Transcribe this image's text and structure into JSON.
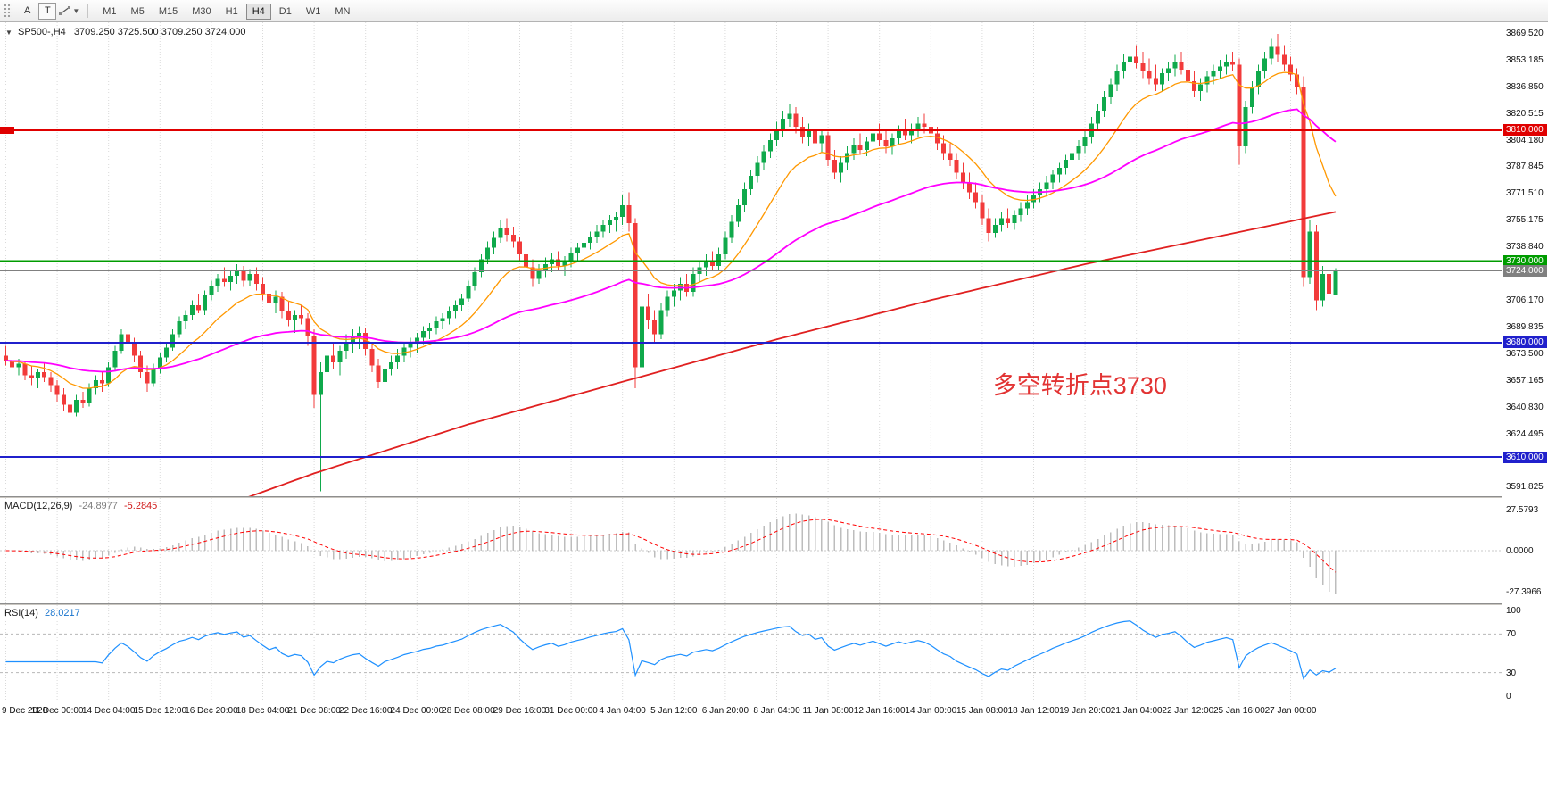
{
  "toolbar": {
    "tools": [
      {
        "name": "annotation-tool",
        "label": "A"
      },
      {
        "name": "text-tool",
        "label": "T"
      }
    ],
    "timeframes": [
      "M1",
      "M5",
      "M15",
      "M30",
      "H1",
      "H4",
      "D1",
      "W1",
      "MN"
    ],
    "active_timeframe": "H4"
  },
  "chart_header": {
    "symbol": "SP500-,H4",
    "ohlc": "3709.250 3725.500 3709.250 3724.000"
  },
  "colors": {
    "up_candle": "#0fa94b",
    "down_candle": "#f23b3b",
    "grid": "#dadada",
    "macd_histogram": "#bdbdbd",
    "macd_signal": "#ff0000",
    "rsi_line": "#1e90ff",
    "annotation": "#e23333"
  },
  "chart_data": {
    "type": "candlestick",
    "symbol": "SP500-",
    "timeframe": "H4",
    "x_axis": {
      "bars_per_label": 8,
      "labels": [
        "9 Dec 2020",
        "11 Dec 00:00",
        "14 Dec 04:00",
        "15 Dec 12:00",
        "16 Dec 20:00",
        "18 Dec 04:00",
        "21 Dec 08:00",
        "22 Dec 16:00",
        "24 Dec 00:00",
        "28 Dec 08:00",
        "29 Dec 16:00",
        "31 Dec 00:00",
        "4 Jan 04:00",
        "5 Jan 12:00",
        "6 Jan 20:00",
        "8 Jan 04:00",
        "11 Jan 08:00",
        "12 Jan 16:00",
        "14 Jan 00:00",
        "15 Jan 08:00",
        "18 Jan 12:00",
        "19 Jan 20:00",
        "21 Jan 04:00",
        "22 Jan 12:00",
        "25 Jan 16:00",
        "27 Jan 00:00"
      ]
    },
    "y_axis": {
      "min": 3586,
      "max": 3876,
      "ticks": [
        "3869.520",
        "3853.185",
        "3836.850",
        "3820.515",
        "3804.180",
        "3787.845",
        "3771.510",
        "3755.175",
        "3738.840",
        "3722.505",
        "3706.170",
        "3689.835",
        "3673.500",
        "3657.165",
        "3640.830",
        "3624.495",
        "3608.160",
        "3591.825"
      ]
    },
    "candles": [
      [
        3672,
        3678,
        3666,
        3669
      ],
      [
        3669,
        3673,
        3662,
        3665
      ],
      [
        3665,
        3670,
        3660,
        3667
      ],
      [
        3667,
        3669,
        3657,
        3660
      ],
      [
        3660,
        3666,
        3654,
        3658
      ],
      [
        3658,
        3664,
        3652,
        3662
      ],
      [
        3662,
        3667,
        3656,
        3659
      ],
      [
        3659,
        3662,
        3650,
        3654
      ],
      [
        3654,
        3657,
        3644,
        3648
      ],
      [
        3648,
        3652,
        3638,
        3642
      ],
      [
        3642,
        3646,
        3633,
        3637
      ],
      [
        3637,
        3648,
        3635,
        3645
      ],
      [
        3645,
        3650,
        3640,
        3643
      ],
      [
        3643,
        3655,
        3641,
        3652
      ],
      [
        3652,
        3660,
        3648,
        3657
      ],
      [
        3657,
        3662,
        3650,
        3655
      ],
      [
        3655,
        3668,
        3653,
        3665
      ],
      [
        3665,
        3678,
        3663,
        3675
      ],
      [
        3675,
        3688,
        3673,
        3685
      ],
      [
        3685,
        3690,
        3676,
        3680
      ],
      [
        3680,
        3683,
        3668,
        3672
      ],
      [
        3672,
        3675,
        3658,
        3662
      ],
      [
        3662,
        3666,
        3650,
        3655
      ],
      [
        3655,
        3667,
        3653,
        3664
      ],
      [
        3664,
        3674,
        3661,
        3671
      ],
      [
        3671,
        3680,
        3668,
        3677
      ],
      [
        3677,
        3688,
        3675,
        3685
      ],
      [
        3685,
        3696,
        3683,
        3693
      ],
      [
        3693,
        3700,
        3688,
        3697
      ],
      [
        3697,
        3706,
        3694,
        3703
      ],
      [
        3703,
        3710,
        3698,
        3700
      ],
      [
        3700,
        3712,
        3697,
        3709
      ],
      [
        3709,
        3718,
        3706,
        3715
      ],
      [
        3715,
        3722,
        3711,
        3719
      ],
      [
        3719,
        3726,
        3714,
        3717
      ],
      [
        3717,
        3724,
        3712,
        3721
      ],
      [
        3721,
        3728,
        3716,
        3724
      ],
      [
        3724,
        3727,
        3714,
        3718
      ],
      [
        3718,
        3725,
        3715,
        3722
      ],
      [
        3722,
        3726,
        3712,
        3716
      ],
      [
        3716,
        3720,
        3706,
        3710
      ],
      [
        3710,
        3715,
        3700,
        3704
      ],
      [
        3704,
        3712,
        3698,
        3708
      ],
      [
        3708,
        3711,
        3695,
        3699
      ],
      [
        3699,
        3705,
        3690,
        3694
      ],
      [
        3694,
        3700,
        3686,
        3697
      ],
      [
        3697,
        3703,
        3691,
        3695
      ],
      [
        3695,
        3698,
        3678,
        3684
      ],
      [
        3684,
        3688,
        3640,
        3648
      ],
      [
        3648,
        3668,
        3589,
        3662
      ],
      [
        3662,
        3676,
        3656,
        3672
      ],
      [
        3672,
        3680,
        3664,
        3668
      ],
      [
        3668,
        3678,
        3660,
        3675
      ],
      [
        3675,
        3685,
        3670,
        3680
      ],
      [
        3680,
        3688,
        3674,
        3684
      ],
      [
        3684,
        3690,
        3676,
        3686
      ],
      [
        3686,
        3689,
        3672,
        3676
      ],
      [
        3676,
        3680,
        3662,
        3666
      ],
      [
        3666,
        3670,
        3652,
        3656
      ],
      [
        3656,
        3668,
        3653,
        3664
      ],
      [
        3664,
        3672,
        3660,
        3668
      ],
      [
        3668,
        3676,
        3664,
        3672
      ],
      [
        3672,
        3680,
        3668,
        3677
      ],
      [
        3677,
        3683,
        3671,
        3680
      ],
      [
        3680,
        3686,
        3674,
        3683
      ],
      [
        3683,
        3690,
        3679,
        3687
      ],
      [
        3687,
        3692,
        3682,
        3689
      ],
      [
        3689,
        3696,
        3685,
        3693
      ],
      [
        3693,
        3698,
        3688,
        3695
      ],
      [
        3695,
        3702,
        3691,
        3699
      ],
      [
        3699,
        3706,
        3695,
        3703
      ],
      [
        3703,
        3710,
        3699,
        3707
      ],
      [
        3707,
        3718,
        3705,
        3715
      ],
      [
        3715,
        3726,
        3712,
        3723
      ],
      [
        3723,
        3734,
        3720,
        3731
      ],
      [
        3731,
        3742,
        3728,
        3738
      ],
      [
        3738,
        3748,
        3734,
        3744
      ],
      [
        3744,
        3755,
        3741,
        3750
      ],
      [
        3750,
        3756,
        3742,
        3746
      ],
      [
        3746,
        3751,
        3738,
        3742
      ],
      [
        3742,
        3745,
        3730,
        3734
      ],
      [
        3734,
        3738,
        3722,
        3726
      ],
      [
        3726,
        3731,
        3714,
        3719
      ],
      [
        3719,
        3728,
        3716,
        3724
      ],
      [
        3724,
        3732,
        3720,
        3728
      ],
      [
        3728,
        3735,
        3723,
        3731
      ],
      [
        3731,
        3736,
        3724,
        3727
      ],
      [
        3727,
        3733,
        3721,
        3730
      ],
      [
        3730,
        3738,
        3726,
        3735
      ],
      [
        3735,
        3741,
        3730,
        3738
      ],
      [
        3738,
        3744,
        3733,
        3741
      ],
      [
        3741,
        3748,
        3737,
        3745
      ],
      [
        3745,
        3752,
        3741,
        3748
      ],
      [
        3748,
        3755,
        3744,
        3752
      ],
      [
        3752,
        3758,
        3747,
        3755
      ],
      [
        3755,
        3760,
        3748,
        3757
      ],
      [
        3757,
        3770,
        3752,
        3764
      ],
      [
        3764,
        3772,
        3748,
        3753
      ],
      [
        3753,
        3756,
        3652,
        3665
      ],
      [
        3665,
        3708,
        3658,
        3702
      ],
      [
        3702,
        3710,
        3688,
        3694
      ],
      [
        3694,
        3700,
        3680,
        3685
      ],
      [
        3685,
        3704,
        3682,
        3700
      ],
      [
        3700,
        3712,
        3696,
        3708
      ],
      [
        3708,
        3716,
        3702,
        3712
      ],
      [
        3712,
        3720,
        3706,
        3716
      ],
      [
        3716,
        3722,
        3708,
        3711
      ],
      [
        3711,
        3726,
        3708,
        3722
      ],
      [
        3722,
        3730,
        3717,
        3726
      ],
      [
        3726,
        3734,
        3721,
        3730
      ],
      [
        3730,
        3736,
        3724,
        3727
      ],
      [
        3727,
        3738,
        3724,
        3734
      ],
      [
        3734,
        3748,
        3731,
        3744
      ],
      [
        3744,
        3758,
        3741,
        3754
      ],
      [
        3754,
        3768,
        3751,
        3764
      ],
      [
        3764,
        3778,
        3760,
        3774
      ],
      [
        3774,
        3786,
        3770,
        3782
      ],
      [
        3782,
        3794,
        3778,
        3790
      ],
      [
        3790,
        3801,
        3786,
        3797
      ],
      [
        3797,
        3808,
        3793,
        3804
      ],
      [
        3804,
        3815,
        3800,
        3811
      ],
      [
        3811,
        3822,
        3806,
        3817
      ],
      [
        3817,
        3826,
        3812,
        3820
      ],
      [
        3820,
        3824,
        3808,
        3812
      ],
      [
        3812,
        3818,
        3802,
        3806
      ],
      [
        3806,
        3814,
        3800,
        3810
      ],
      [
        3810,
        3816,
        3798,
        3802
      ],
      [
        3802,
        3810,
        3796,
        3807
      ],
      [
        3807,
        3809,
        3788,
        3792
      ],
      [
        3792,
        3798,
        3780,
        3784
      ],
      [
        3784,
        3794,
        3778,
        3790
      ],
      [
        3790,
        3800,
        3786,
        3796
      ],
      [
        3796,
        3805,
        3792,
        3801
      ],
      [
        3801,
        3808,
        3795,
        3798
      ],
      [
        3798,
        3806,
        3794,
        3803
      ],
      [
        3803,
        3812,
        3799,
        3808
      ],
      [
        3808,
        3814,
        3800,
        3804
      ],
      [
        3804,
        3810,
        3796,
        3800
      ],
      [
        3800,
        3808,
        3795,
        3805
      ],
      [
        3805,
        3813,
        3801,
        3810
      ],
      [
        3810,
        3817,
        3804,
        3807
      ],
      [
        3807,
        3814,
        3802,
        3811
      ],
      [
        3811,
        3818,
        3806,
        3814
      ],
      [
        3814,
        3820,
        3808,
        3812
      ],
      [
        3812,
        3818,
        3804,
        3808
      ],
      [
        3808,
        3812,
        3798,
        3802
      ],
      [
        3802,
        3807,
        3792,
        3796
      ],
      [
        3796,
        3802,
        3788,
        3792
      ],
      [
        3792,
        3796,
        3780,
        3784
      ],
      [
        3784,
        3790,
        3774,
        3778
      ],
      [
        3778,
        3784,
        3768,
        3772
      ],
      [
        3772,
        3778,
        3762,
        3766
      ],
      [
        3766,
        3770,
        3752,
        3756
      ],
      [
        3756,
        3762,
        3742,
        3747
      ],
      [
        3747,
        3756,
        3744,
        3752
      ],
      [
        3752,
        3760,
        3748,
        3756
      ],
      [
        3756,
        3762,
        3750,
        3753
      ],
      [
        3753,
        3761,
        3749,
        3758
      ],
      [
        3758,
        3766,
        3754,
        3762
      ],
      [
        3762,
        3770,
        3758,
        3766
      ],
      [
        3766,
        3774,
        3762,
        3770
      ],
      [
        3770,
        3778,
        3766,
        3774
      ],
      [
        3774,
        3782,
        3770,
        3778
      ],
      [
        3778,
        3786,
        3774,
        3783
      ],
      [
        3783,
        3790,
        3778,
        3787
      ],
      [
        3787,
        3795,
        3783,
        3792
      ],
      [
        3792,
        3800,
        3788,
        3796
      ],
      [
        3796,
        3804,
        3792,
        3800
      ],
      [
        3800,
        3810,
        3796,
        3806
      ],
      [
        3806,
        3818,
        3802,
        3814
      ],
      [
        3814,
        3826,
        3810,
        3822
      ],
      [
        3822,
        3834,
        3818,
        3830
      ],
      [
        3830,
        3842,
        3826,
        3838
      ],
      [
        3838,
        3850,
        3834,
        3846
      ],
      [
        3846,
        3857,
        3842,
        3852
      ],
      [
        3852,
        3860,
        3846,
        3855
      ],
      [
        3855,
        3862,
        3848,
        3851
      ],
      [
        3851,
        3858,
        3842,
        3846
      ],
      [
        3846,
        3854,
        3838,
        3842
      ],
      [
        3842,
        3850,
        3834,
        3838
      ],
      [
        3838,
        3848,
        3834,
        3845
      ],
      [
        3845,
        3852,
        3840,
        3848
      ],
      [
        3848,
        3856,
        3843,
        3852
      ],
      [
        3852,
        3858,
        3844,
        3847
      ],
      [
        3847,
        3852,
        3836,
        3840
      ],
      [
        3840,
        3846,
        3830,
        3834
      ],
      [
        3834,
        3842,
        3828,
        3838
      ],
      [
        3838,
        3846,
        3833,
        3843
      ],
      [
        3843,
        3850,
        3838,
        3846
      ],
      [
        3846,
        3853,
        3841,
        3849
      ],
      [
        3849,
        3856,
        3844,
        3852
      ],
      [
        3852,
        3858,
        3846,
        3850
      ],
      [
        3850,
        3854,
        3789,
        3800
      ],
      [
        3800,
        3828,
        3796,
        3824
      ],
      [
        3824,
        3840,
        3820,
        3836
      ],
      [
        3836,
        3850,
        3832,
        3846
      ],
      [
        3846,
        3858,
        3842,
        3854
      ],
      [
        3854,
        3866,
        3850,
        3861
      ],
      [
        3861,
        3869,
        3852,
        3856
      ],
      [
        3856,
        3862,
        3846,
        3850
      ],
      [
        3850,
        3855,
        3840,
        3844
      ],
      [
        3844,
        3848,
        3832,
        3836
      ],
      [
        3836,
        3843,
        3714,
        3720
      ],
      [
        3720,
        3755,
        3716,
        3748
      ],
      [
        3748,
        3752,
        3700,
        3706
      ],
      [
        3706,
        3727,
        3702,
        3722
      ],
      [
        3722,
        3726,
        3704,
        3710
      ],
      [
        3709.25,
        3725.5,
        3709.25,
        3724
      ]
    ],
    "moving_averages": [
      {
        "name": "fast-ma",
        "type": "ema",
        "period": 13,
        "color": "#ff9800",
        "width": 1.3
      },
      {
        "name": "medium-ma",
        "type": "ema",
        "period": 55,
        "color": "#ff00ff",
        "width": 1.8
      },
      {
        "name": "slow-ma",
        "type": "points",
        "color": "#e02020",
        "width": 1.8,
        "points": [
          [
            0,
            3528
          ],
          [
            24,
            3566
          ],
          [
            48,
            3600
          ],
          [
            72,
            3630
          ],
          [
            96,
            3656
          ],
          [
            120,
            3682
          ],
          [
            144,
            3706
          ],
          [
            168,
            3728
          ],
          [
            190,
            3746
          ],
          [
            207,
            3760
          ]
        ]
      }
    ],
    "hlines": [
      {
        "price": 3810,
        "label": "3810.000",
        "color": "#e00000",
        "width": 2,
        "role": "resistance"
      },
      {
        "price": 3730,
        "label": "3730.000",
        "color": "#009c00",
        "width": 2,
        "role": "pivot"
      },
      {
        "price": 3724,
        "label": "3724.000",
        "color": "#808080",
        "width": 1,
        "role": "last-price"
      },
      {
        "price": 3680,
        "label": "3680.000",
        "color": "#2020cc",
        "width": 2,
        "role": "support"
      },
      {
        "price": 3610,
        "label": "3610.000",
        "color": "#2020cc",
        "width": 2,
        "role": "support"
      }
    ],
    "annotation": {
      "text": "多空转折点3730",
      "color": "#e23333",
      "bar": 154,
      "price": 3657
    },
    "indicators": [
      {
        "name": "MACD",
        "label": "MACD(12,26,9)",
        "params": [
          12,
          26,
          9
        ],
        "values": [
          "-24.8977",
          "-5.2845"
        ],
        "axis": [
          "27.5793",
          "0.0000",
          "-27.3966"
        ]
      },
      {
        "name": "RSI",
        "label": "RSI(14)",
        "params": [
          14
        ],
        "value": "28.0217",
        "axis": [
          "100",
          "70",
          "30",
          "0"
        ],
        "levels": [
          70,
          30
        ]
      }
    ]
  }
}
